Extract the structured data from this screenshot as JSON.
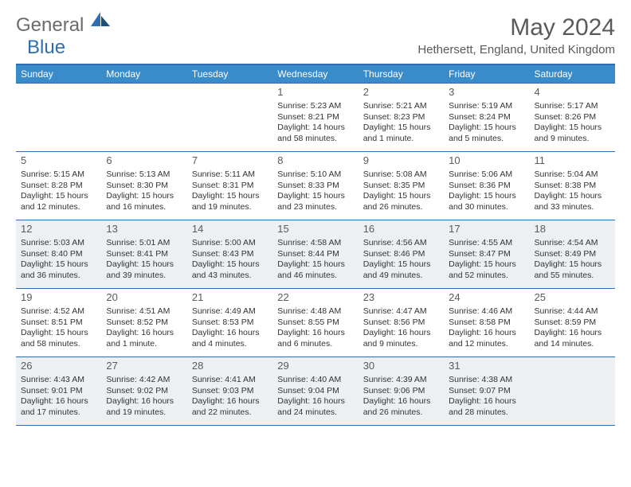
{
  "brand": {
    "part1": "General",
    "part2": "Blue"
  },
  "title": "May 2024",
  "location": "Hethersett, England, United Kingdom",
  "colors": {
    "header_bg": "#3a8bc9",
    "header_border": "#2f6fb0",
    "cell_border": "#2f6fb0",
    "highlight_bg": "#edf0f3",
    "text": "#333333",
    "title_text": "#5a5a5a"
  },
  "weekdays": [
    "Sunday",
    "Monday",
    "Tuesday",
    "Wednesday",
    "Thursday",
    "Friday",
    "Saturday"
  ],
  "grid": [
    [
      {
        "day": "",
        "sunrise": "",
        "sunset": "",
        "daylight": "",
        "hl": false
      },
      {
        "day": "",
        "sunrise": "",
        "sunset": "",
        "daylight": "",
        "hl": false
      },
      {
        "day": "",
        "sunrise": "",
        "sunset": "",
        "daylight": "",
        "hl": false
      },
      {
        "day": "1",
        "sunrise": "Sunrise: 5:23 AM",
        "sunset": "Sunset: 8:21 PM",
        "daylight": "Daylight: 14 hours and 58 minutes.",
        "hl": false
      },
      {
        "day": "2",
        "sunrise": "Sunrise: 5:21 AM",
        "sunset": "Sunset: 8:23 PM",
        "daylight": "Daylight: 15 hours and 1 minute.",
        "hl": false
      },
      {
        "day": "3",
        "sunrise": "Sunrise: 5:19 AM",
        "sunset": "Sunset: 8:24 PM",
        "daylight": "Daylight: 15 hours and 5 minutes.",
        "hl": false
      },
      {
        "day": "4",
        "sunrise": "Sunrise: 5:17 AM",
        "sunset": "Sunset: 8:26 PM",
        "daylight": "Daylight: 15 hours and 9 minutes.",
        "hl": false
      }
    ],
    [
      {
        "day": "5",
        "sunrise": "Sunrise: 5:15 AM",
        "sunset": "Sunset: 8:28 PM",
        "daylight": "Daylight: 15 hours and 12 minutes.",
        "hl": false
      },
      {
        "day": "6",
        "sunrise": "Sunrise: 5:13 AM",
        "sunset": "Sunset: 8:30 PM",
        "daylight": "Daylight: 15 hours and 16 minutes.",
        "hl": false
      },
      {
        "day": "7",
        "sunrise": "Sunrise: 5:11 AM",
        "sunset": "Sunset: 8:31 PM",
        "daylight": "Daylight: 15 hours and 19 minutes.",
        "hl": false
      },
      {
        "day": "8",
        "sunrise": "Sunrise: 5:10 AM",
        "sunset": "Sunset: 8:33 PM",
        "daylight": "Daylight: 15 hours and 23 minutes.",
        "hl": false
      },
      {
        "day": "9",
        "sunrise": "Sunrise: 5:08 AM",
        "sunset": "Sunset: 8:35 PM",
        "daylight": "Daylight: 15 hours and 26 minutes.",
        "hl": false
      },
      {
        "day": "10",
        "sunrise": "Sunrise: 5:06 AM",
        "sunset": "Sunset: 8:36 PM",
        "daylight": "Daylight: 15 hours and 30 minutes.",
        "hl": false
      },
      {
        "day": "11",
        "sunrise": "Sunrise: 5:04 AM",
        "sunset": "Sunset: 8:38 PM",
        "daylight": "Daylight: 15 hours and 33 minutes.",
        "hl": false
      }
    ],
    [
      {
        "day": "12",
        "sunrise": "Sunrise: 5:03 AM",
        "sunset": "Sunset: 8:40 PM",
        "daylight": "Daylight: 15 hours and 36 minutes.",
        "hl": true
      },
      {
        "day": "13",
        "sunrise": "Sunrise: 5:01 AM",
        "sunset": "Sunset: 8:41 PM",
        "daylight": "Daylight: 15 hours and 39 minutes.",
        "hl": true
      },
      {
        "day": "14",
        "sunrise": "Sunrise: 5:00 AM",
        "sunset": "Sunset: 8:43 PM",
        "daylight": "Daylight: 15 hours and 43 minutes.",
        "hl": true
      },
      {
        "day": "15",
        "sunrise": "Sunrise: 4:58 AM",
        "sunset": "Sunset: 8:44 PM",
        "daylight": "Daylight: 15 hours and 46 minutes.",
        "hl": true
      },
      {
        "day": "16",
        "sunrise": "Sunrise: 4:56 AM",
        "sunset": "Sunset: 8:46 PM",
        "daylight": "Daylight: 15 hours and 49 minutes.",
        "hl": true
      },
      {
        "day": "17",
        "sunrise": "Sunrise: 4:55 AM",
        "sunset": "Sunset: 8:47 PM",
        "daylight": "Daylight: 15 hours and 52 minutes.",
        "hl": true
      },
      {
        "day": "18",
        "sunrise": "Sunrise: 4:54 AM",
        "sunset": "Sunset: 8:49 PM",
        "daylight": "Daylight: 15 hours and 55 minutes.",
        "hl": true
      }
    ],
    [
      {
        "day": "19",
        "sunrise": "Sunrise: 4:52 AM",
        "sunset": "Sunset: 8:51 PM",
        "daylight": "Daylight: 15 hours and 58 minutes.",
        "hl": false
      },
      {
        "day": "20",
        "sunrise": "Sunrise: 4:51 AM",
        "sunset": "Sunset: 8:52 PM",
        "daylight": "Daylight: 16 hours and 1 minute.",
        "hl": false
      },
      {
        "day": "21",
        "sunrise": "Sunrise: 4:49 AM",
        "sunset": "Sunset: 8:53 PM",
        "daylight": "Daylight: 16 hours and 4 minutes.",
        "hl": false
      },
      {
        "day": "22",
        "sunrise": "Sunrise: 4:48 AM",
        "sunset": "Sunset: 8:55 PM",
        "daylight": "Daylight: 16 hours and 6 minutes.",
        "hl": false
      },
      {
        "day": "23",
        "sunrise": "Sunrise: 4:47 AM",
        "sunset": "Sunset: 8:56 PM",
        "daylight": "Daylight: 16 hours and 9 minutes.",
        "hl": false
      },
      {
        "day": "24",
        "sunrise": "Sunrise: 4:46 AM",
        "sunset": "Sunset: 8:58 PM",
        "daylight": "Daylight: 16 hours and 12 minutes.",
        "hl": false
      },
      {
        "day": "25",
        "sunrise": "Sunrise: 4:44 AM",
        "sunset": "Sunset: 8:59 PM",
        "daylight": "Daylight: 16 hours and 14 minutes.",
        "hl": false
      }
    ],
    [
      {
        "day": "26",
        "sunrise": "Sunrise: 4:43 AM",
        "sunset": "Sunset: 9:01 PM",
        "daylight": "Daylight: 16 hours and 17 minutes.",
        "hl": true
      },
      {
        "day": "27",
        "sunrise": "Sunrise: 4:42 AM",
        "sunset": "Sunset: 9:02 PM",
        "daylight": "Daylight: 16 hours and 19 minutes.",
        "hl": true
      },
      {
        "day": "28",
        "sunrise": "Sunrise: 4:41 AM",
        "sunset": "Sunset: 9:03 PM",
        "daylight": "Daylight: 16 hours and 22 minutes.",
        "hl": true
      },
      {
        "day": "29",
        "sunrise": "Sunrise: 4:40 AM",
        "sunset": "Sunset: 9:04 PM",
        "daylight": "Daylight: 16 hours and 24 minutes.",
        "hl": true
      },
      {
        "day": "30",
        "sunrise": "Sunrise: 4:39 AM",
        "sunset": "Sunset: 9:06 PM",
        "daylight": "Daylight: 16 hours and 26 minutes.",
        "hl": true
      },
      {
        "day": "31",
        "sunrise": "Sunrise: 4:38 AM",
        "sunset": "Sunset: 9:07 PM",
        "daylight": "Daylight: 16 hours and 28 minutes.",
        "hl": true
      },
      {
        "day": "",
        "sunrise": "",
        "sunset": "",
        "daylight": "",
        "hl": true
      }
    ]
  ]
}
